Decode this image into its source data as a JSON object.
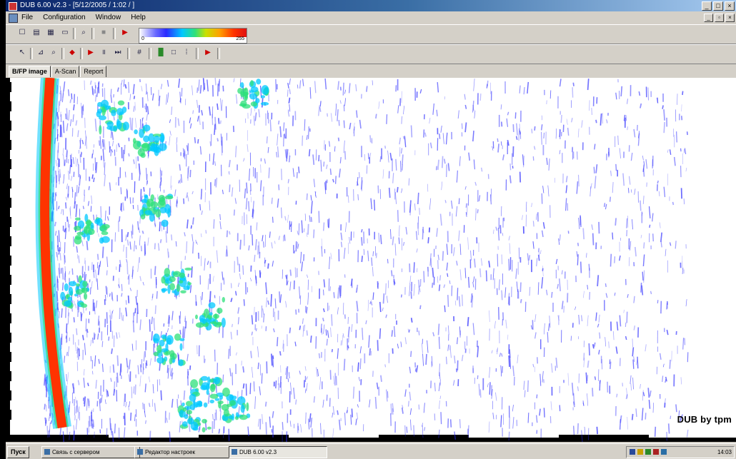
{
  "window": {
    "title": "DUB 6.00 v2.3 - [5/12/2005 / 1:02 / ]"
  },
  "menubar": {
    "items": [
      "File",
      "Configuration",
      "Window",
      "Help"
    ]
  },
  "palette": {
    "low_label": "0",
    "high_label": "255"
  },
  "tabs": [
    "B/FP image",
    "A-Scan",
    "Report"
  ],
  "plot": {
    "watermark": "DUB by tpm",
    "colors": [
      "#ffffff",
      "#2a2aff",
      "#00c8ff",
      "#2ee07a",
      "#ff3300"
    ]
  },
  "taskbar": {
    "start_label": "Пуск",
    "tasks": [
      "Связь с сервером",
      "Редактор настроек",
      "DUB 6.00 v2.3"
    ],
    "clock": "14:03"
  },
  "icons": [
    "new-icon",
    "open-icon",
    "save-icon",
    "print-icon",
    "stop-icon",
    "play-icon"
  ]
}
